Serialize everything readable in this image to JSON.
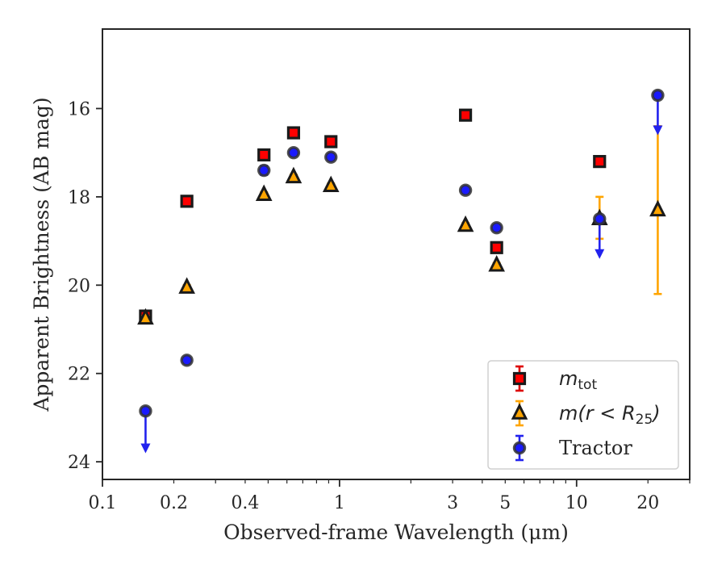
{
  "chart_data": {
    "type": "scatter",
    "xscale": "log",
    "yscale": "linear",
    "yinverted": true,
    "xlim": [
      0.1,
      30
    ],
    "ylim": [
      24.4,
      14.2
    ],
    "xlabel": "Observed-frame Wavelength (μm)",
    "ylabel": "Apparent Brightness (AB mag)",
    "xticks": [
      {
        "value": 0.1,
        "label": "0.1"
      },
      {
        "value": 0.2,
        "label": "0.2"
      },
      {
        "value": 0.4,
        "label": "0.4"
      },
      {
        "value": 1,
        "label": "1"
      },
      {
        "value": 3,
        "label": "3"
      },
      {
        "value": 5,
        "label": "5"
      },
      {
        "value": 10,
        "label": "10"
      },
      {
        "value": 20,
        "label": "20"
      }
    ],
    "yticks": [
      {
        "value": 16,
        "label": "16"
      },
      {
        "value": 18,
        "label": "18"
      },
      {
        "value": 20,
        "label": "20"
      },
      {
        "value": 22,
        "label": "22"
      },
      {
        "value": 24,
        "label": "24"
      }
    ],
    "grid": false,
    "legend_position": "lower-right",
    "series": [
      {
        "name": "m_tot",
        "legend_main": "m",
        "legend_sub": "tot",
        "marker": "square",
        "color": "#ff0000",
        "edge": "#1a1a1a",
        "err_color": "#dd0000",
        "points": [
          {
            "x": 0.152,
            "y": 20.7,
            "err": 0.1
          },
          {
            "x": 0.227,
            "y": 18.1,
            "err": 0.05
          },
          {
            "x": 0.48,
            "y": 17.05,
            "err": 0.05
          },
          {
            "x": 0.64,
            "y": 16.55,
            "err": 0.05
          },
          {
            "x": 0.92,
            "y": 16.75,
            "err": 0.05
          },
          {
            "x": 3.4,
            "y": 16.15,
            "err": 0.05
          },
          {
            "x": 4.6,
            "y": 19.15,
            "err": 0.05
          },
          {
            "x": 12.5,
            "y": 17.2,
            "err": 0.05
          }
        ]
      },
      {
        "name": "m(r<R_25)",
        "legend_main": "m(r < R",
        "legend_sub": "25",
        "legend_tail": ")",
        "marker": "triangle",
        "color": "#ffa500",
        "edge": "#1a1a1a",
        "err_color": "#ffa500",
        "points": [
          {
            "x": 0.152,
            "y": 20.75,
            "err": 0.05
          },
          {
            "x": 0.227,
            "y": 20.05,
            "err": 0.05
          },
          {
            "x": 0.48,
            "y": 17.95,
            "err": 0.05
          },
          {
            "x": 0.64,
            "y": 17.55,
            "err": 0.05
          },
          {
            "x": 0.92,
            "y": 17.75,
            "err": 0.05
          },
          {
            "x": 3.4,
            "y": 18.65,
            "err": 0.05
          },
          {
            "x": 4.6,
            "y": 19.55,
            "err": 0.05
          },
          {
            "x": 12.5,
            "y": 18.5,
            "err_low": 0.45,
            "err_high": 0.5
          },
          {
            "x": 22.0,
            "y": 18.3,
            "err_low": 1.9,
            "err_high": 1.9
          }
        ]
      },
      {
        "name": "Tractor",
        "marker": "circle",
        "color": "#1a1aff",
        "edge": "#333333",
        "err_color": "#2222ee",
        "points": [
          {
            "x": 0.152,
            "y": 22.85,
            "upper_limit": true,
            "arrow_to": 23.75
          },
          {
            "x": 0.227,
            "y": 21.7,
            "err": 0.05
          },
          {
            "x": 0.48,
            "y": 17.4,
            "err": 0.1
          },
          {
            "x": 0.64,
            "y": 17.0,
            "err": 0.05
          },
          {
            "x": 0.92,
            "y": 17.1,
            "err": 0.05
          },
          {
            "x": 3.4,
            "y": 17.85,
            "err": 0.05
          },
          {
            "x": 4.6,
            "y": 18.7,
            "err": 0.05
          },
          {
            "x": 12.5,
            "y": 18.5,
            "upper_limit": true,
            "arrow_to": 19.35
          },
          {
            "x": 22.0,
            "y": 15.7,
            "upper_limit": true,
            "arrow_to": 16.55
          }
        ]
      }
    ]
  }
}
